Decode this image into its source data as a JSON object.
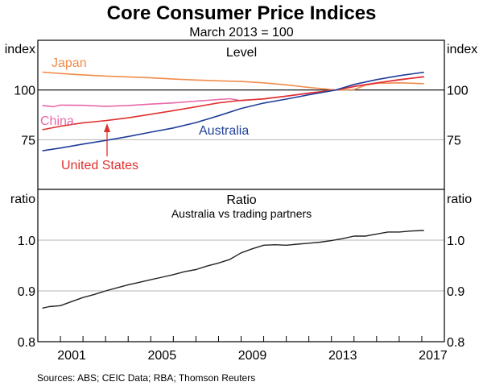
{
  "chart_data": {
    "type": "line",
    "title": "Core Consumer Price Indices",
    "subtitle": "March 2013 = 100",
    "source": "Sources: ABS; CEIC Data; RBA; Thomson Reuters",
    "xlim": [
      2000,
      2018
    ],
    "x_tick_labels": [
      "2001",
      "2005",
      "2009",
      "2013",
      "2017"
    ],
    "x_tick_label_years": [
      2001,
      2005,
      2009,
      2013,
      2017
    ],
    "panels": [
      {
        "title": "Level",
        "subtitle": "",
        "ylabel_left": "index",
        "ylabel_right": "index",
        "ylim": [
          50,
          125
        ],
        "y_tick_labels": [
          "75",
          "100"
        ],
        "y_ticks": [
          75,
          100
        ],
        "reference_line": 100,
        "series": [
          {
            "name": "Japan",
            "color": "#F08C4C",
            "x": [
              2000.2,
              2001,
              2002,
              2003,
              2004,
              2005,
              2006,
              2007,
              2008,
              2009,
              2010,
              2011,
              2012,
              2013.2,
              2014,
              2014.5,
              2015,
              2016,
              2017.1
            ],
            "y": [
              109,
              108.3,
              107.6,
              107,
              106.6,
              106.1,
              105.5,
              105,
              104.6,
              104.3,
              103.6,
              102.6,
              101.3,
              100,
              100.2,
              102.4,
              103.3,
              103.6,
              103.2
            ]
          },
          {
            "name": "China",
            "color": "#E868A8",
            "x": [
              2000.2,
              2000.7,
              2001,
              2002,
              2003,
              2004,
              2005,
              2006,
              2007,
              2008,
              2008.5,
              2009,
              2010,
              2011,
              2012,
              2013.2,
              2014,
              2015,
              2016,
              2017.1
            ],
            "y": [
              92.2,
              91.6,
              92.4,
              92.3,
              91.8,
              92.2,
              92.9,
              93.5,
              94.4,
              95.2,
              95.6,
              94.6,
              95.6,
              96.9,
              98.3,
              100,
              101.9,
              103.6,
              105,
              106.8
            ]
          },
          {
            "name": "United States",
            "color": "#E0302E",
            "x": [
              2000.2,
              2001,
              2002,
              2003,
              2004,
              2005,
              2006,
              2007,
              2008,
              2009,
              2010,
              2011,
              2012,
              2013.2,
              2014,
              2015,
              2016,
              2017.1
            ],
            "y": [
              80,
              81.8,
              83.5,
              84.6,
              86,
              87.8,
              89.6,
              91.5,
              93.5,
              94.8,
              95.5,
              96.9,
              98.5,
              100,
              101.7,
              103.5,
              105.2,
              106.6
            ]
          },
          {
            "name": "Australia",
            "color": "#203E9A",
            "x": [
              2000.2,
              2001,
              2002,
              2003,
              2004,
              2005,
              2006,
              2007,
              2008,
              2009,
              2010,
              2011,
              2012,
              2013.2,
              2014,
              2015,
              2016,
              2017.1
            ],
            "y": [
              69.4,
              70.8,
              72.8,
              74.6,
              76.6,
              78.8,
              80.9,
              83.6,
              87,
              90.7,
              93.4,
              95.4,
              97.6,
              100,
              102.8,
              105.2,
              107.2,
              108.9
            ]
          }
        ],
        "annotations": [
          {
            "text": "Japan",
            "series": "Japan"
          },
          {
            "text": "China",
            "series": "China"
          },
          {
            "text": "United States",
            "series": "United States",
            "arrow": true
          },
          {
            "text": "Australia",
            "series": "Australia"
          }
        ]
      },
      {
        "title": "Ratio",
        "subtitle": "Australia vs trading partners",
        "ylabel_left": "ratio",
        "ylabel_right": "ratio",
        "ylim": [
          0.8,
          1.1
        ],
        "y_tick_labels": [
          "0.8",
          "0.9",
          "1.0"
        ],
        "y_ticks": [
          0.8,
          0.9,
          1.0
        ],
        "series": [
          {
            "name": "Australia vs trading partners",
            "color": "#222222",
            "x": [
              2000.2,
              2000.5,
              2001,
              2001.5,
              2002,
              2002.5,
              2003,
              2003.5,
              2004,
              2004.5,
              2005,
              2005.5,
              2006,
              2006.5,
              2007,
              2007.5,
              2008,
              2008.5,
              2009,
              2009.5,
              2010,
              2010.5,
              2011,
              2011.5,
              2012,
              2012.5,
              2013,
              2013.5,
              2014,
              2014.5,
              2015,
              2015.5,
              2016,
              2016.5,
              2017.1
            ],
            "y": [
              0.866,
              0.869,
              0.871,
              0.879,
              0.887,
              0.893,
              0.9,
              0.906,
              0.912,
              0.917,
              0.922,
              0.927,
              0.932,
              0.938,
              0.942,
              0.949,
              0.955,
              0.962,
              0.975,
              0.983,
              0.99,
              0.991,
              0.99,
              0.992,
              0.994,
              0.996,
              0.999,
              1.003,
              1.008,
              1.008,
              1.012,
              1.016,
              1.016,
              1.018,
              1.019
            ]
          }
        ]
      }
    ]
  }
}
